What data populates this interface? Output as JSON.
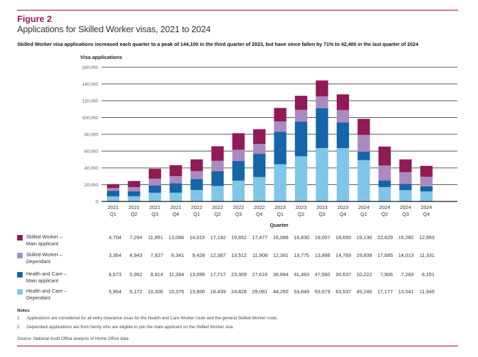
{
  "figure": {
    "label": "Figure 2",
    "title": "Applications for Skilled Worker visas, 2021 to 2024",
    "subtitle": "Skilled Worker visa applications increased each quarter to a peak of 144,100 in the third quarter of 2023, but have since fallen by 71% to 42,400 in the last quarter of 2024",
    "accent_color": "#c3799f",
    "label_color": "#9b1b5a"
  },
  "chart_data": {
    "type": "bar",
    "stacked": true,
    "title": "Applications for Skilled Worker visas, 2021 to 2024",
    "ylabel": "Visa applications",
    "xlabel": "Quarter",
    "ylim": [
      0,
      160000
    ],
    "yticks": [
      0,
      20000,
      40000,
      60000,
      80000,
      100000,
      120000,
      140000,
      160000
    ],
    "ytick_labels": [
      "0",
      "20,000",
      "40,000",
      "60,000",
      "80,000",
      "100,000",
      "120,000",
      "140,000",
      "160,000"
    ],
    "grid": true,
    "legend_position": "bottom-left (table rows)",
    "categories": [
      {
        "year": "2021",
        "q": "Q1"
      },
      {
        "year": "2021",
        "q": "Q2"
      },
      {
        "year": "2021",
        "q": "Q3"
      },
      {
        "year": "2021",
        "q": "Q4"
      },
      {
        "year": "2022",
        "q": "Q1"
      },
      {
        "year": "2022",
        "q": "Q2"
      },
      {
        "year": "2022",
        "q": "Q3"
      },
      {
        "year": "2022",
        "q": "Q4"
      },
      {
        "year": "2023",
        "q": "Q1"
      },
      {
        "year": "2023",
        "q": "Q2"
      },
      {
        "year": "2023",
        "q": "Q3"
      },
      {
        "year": "2023",
        "q": "Q4"
      },
      {
        "year": "2024",
        "q": "Q1"
      },
      {
        "year": "2024",
        "q": "Q2"
      },
      {
        "year": "2024",
        "q": "Q3"
      },
      {
        "year": "2024",
        "q": "Q4"
      }
    ],
    "series_stack_order": "bottom-to-top: Health and Care Dependant, Health and Care Main applicant, Skilled Worker Dependant, Skilled Worker Main applicant",
    "series": [
      {
        "name_line1": "Skilled Worker –",
        "name_line2": "Main applicant",
        "color": "#921a55",
        "values": [
          4704,
          7294,
          11951,
          13086,
          14015,
          17192,
          19652,
          17477,
          16086,
          16830,
          19007,
          18650,
          19130,
          22629,
          15282,
          12953
        ],
        "labels": [
          "4,704",
          "7,294",
          "11,951",
          "13,086",
          "14,015",
          "17,192",
          "19,652",
          "17,477",
          "16,086",
          "16,830",
          "19,007",
          "18,650",
          "19,130",
          "22,629",
          "15,282",
          "12,953"
        ]
      },
      {
        "name_line1": "Skilled Worker –",
        "name_line2": "Dependant",
        "color": "#ab8abf",
        "values": [
          3364,
          4943,
          7927,
          8341,
          9428,
          12387,
          13512,
          11908,
          12391,
          13775,
          13898,
          14769,
          19839,
          17685,
          14013,
          11331
        ],
        "labels": [
          "3,364",
          "4,943",
          "7,927",
          "8,341",
          "9,428",
          "12,387",
          "13,512",
          "11,908",
          "12,391",
          "13,775",
          "13,898",
          "14,769",
          "19,839",
          "17,685",
          "14,013",
          "11,331"
        ]
      },
      {
        "name_line1": "Health and Care –",
        "name_line2": "Main applicant",
        "color": "#1566a8",
        "values": [
          6673,
          5952,
          8814,
          11394,
          13099,
          17717,
          23309,
          27616,
          38684,
          41463,
          47560,
          30637,
          10222,
          7906,
          7283,
          6151
        ],
        "labels": [
          "6,673",
          "5,952",
          "8,814",
          "11,394",
          "13,099",
          "17,717",
          "23,309",
          "27,616",
          "38,684",
          "41,463",
          "47,560",
          "30,637",
          "10,222",
          "7,906",
          "7,283",
          "6,151"
        ]
      },
      {
        "name_line1": "Health and Care –",
        "name_line2": "Dependant",
        "color": "#80c6e8",
        "values": [
          5954,
          6172,
          10306,
          10376,
          13600,
          18439,
          24828,
          29081,
          44260,
          53849,
          63679,
          63537,
          49246,
          17177,
          13541,
          11945
        ],
        "labels": [
          "5,954",
          "6,172",
          "10,306",
          "10,376",
          "13,600",
          "18,439",
          "24,828",
          "29,081",
          "44,260",
          "53,849",
          "63,679",
          "63,537",
          "49,246",
          "17,177",
          "13,541",
          "11,945"
        ]
      }
    ]
  },
  "notes": {
    "heading": "Notes",
    "items": [
      {
        "num": "1",
        "text": "Applications are considered for all entry clearance visas for the Health and Care Worker route and the general Skilled Worker route."
      },
      {
        "num": "2",
        "text": "Dependant applications are from family who are eligible to join the main applicant on the Skilled Worker visa."
      }
    ],
    "source": "Source: National Audit Office analysis of Home Office data"
  }
}
